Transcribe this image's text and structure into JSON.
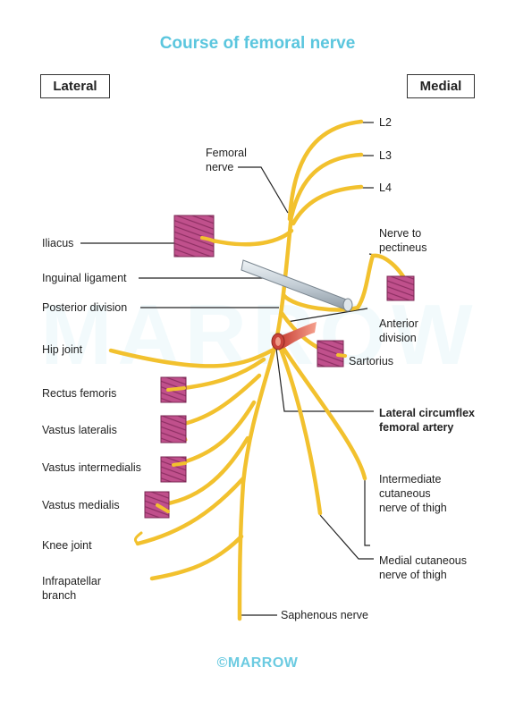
{
  "title": "Course of femoral nerve",
  "side_tags": {
    "lateral": "Lateral",
    "medial": "Medial"
  },
  "roots": [
    "L2",
    "L3",
    "L4"
  ],
  "labels": {
    "femoral_nerve": "Femoral\nnerve",
    "iliacus": "Iliacus",
    "inguinal_ligament": "Inguinal ligament",
    "posterior_division": "Posterior division",
    "hip_joint": "Hip joint",
    "rectus_femoris": "Rectus femoris",
    "vastus_lateralis": "Vastus lateralis",
    "vastus_intermedialis": "Vastus intermedialis",
    "vastus_medialis": "Vastus medialis",
    "knee_joint": "Knee joint",
    "infrapatellar_branch": "Infrapatellar\nbranch",
    "nerve_to_pectineus": "Nerve to\npectineus",
    "anterior_division": "Anterior\ndivision",
    "sartorius": "Sartorius",
    "lateral_circumflex_femoral_artery": "Lateral circumflex\nfemoral artery",
    "intermediate_cutaneous_nerve": "Intermediate\ncutaneous\nnerve of thigh",
    "medial_cutaneous_nerve": "Medial cutaneous\nnerve of thigh",
    "saphenous_nerve": "Saphenous nerve"
  },
  "watermark": "MARROW",
  "footer": "©MARROW",
  "colors": {
    "nerve": "#f2c12e",
    "muscle": "#c0508c",
    "artery": "#e0584a",
    "ligament": "#b8c4cc",
    "title": "#5bc6de"
  }
}
